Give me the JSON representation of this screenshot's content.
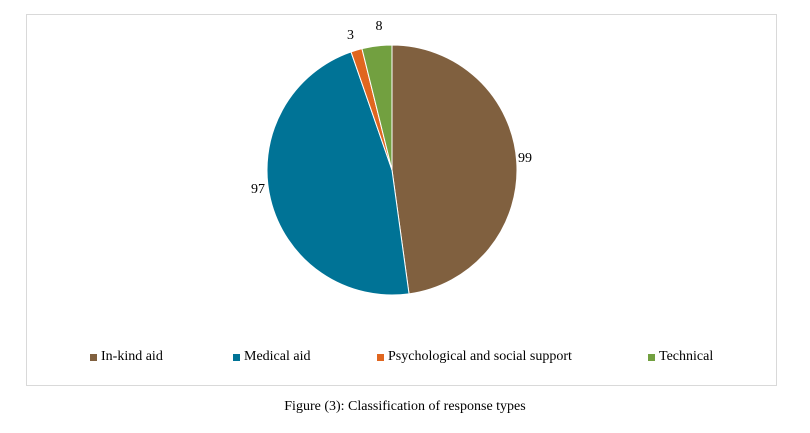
{
  "chart_data": {
    "type": "pie",
    "categories": [
      "In-kind aid",
      "Medical aid",
      "Psychological and social support",
      "Technical"
    ],
    "values": [
      99,
      97,
      3,
      8
    ],
    "colors": [
      "#80603F",
      "#007396",
      "#E0661F",
      "#72A040"
    ],
    "data_labels": [
      "99",
      "97",
      "3",
      "8"
    ],
    "legend_position": "bottom",
    "caption": "Figure (3): Classification of response types"
  }
}
